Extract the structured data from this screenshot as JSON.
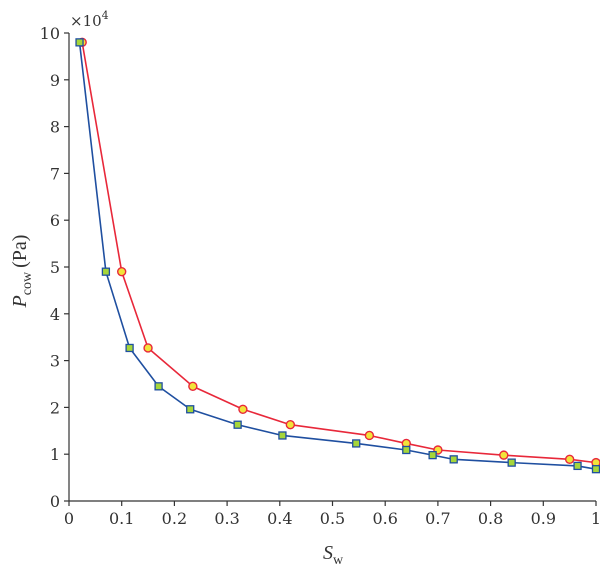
{
  "chart_data": {
    "type": "line",
    "title": "",
    "xlabel": {
      "main": "S",
      "sub": "w"
    },
    "ylabel": {
      "main": "P",
      "sub": "cow",
      "unit": "(Pa)"
    },
    "y_multiplier": {
      "base": "×10",
      "exponent": "4"
    },
    "xlim": [
      0,
      1
    ],
    "ylim": [
      0,
      10
    ],
    "x_ticks": [
      "0",
      "0.1",
      "0.2",
      "0.3",
      "0.4",
      "0.5",
      "0.6",
      "0.7",
      "0.8",
      "0.9",
      "1"
    ],
    "y_ticks": [
      "0",
      "1",
      "2",
      "3",
      "4",
      "5",
      "6",
      "7",
      "8",
      "9",
      "10"
    ],
    "grid": false,
    "series": [
      {
        "line_color": "#e8283a",
        "marker": "circle",
        "marker_fill": "#f2e33a",
        "marker_edge": "#e8283a",
        "points": [
          [
            0.025,
            9.8
          ],
          [
            0.1,
            4.9
          ],
          [
            0.15,
            3.27
          ],
          [
            0.235,
            2.45
          ],
          [
            0.33,
            1.96
          ],
          [
            0.42,
            1.63
          ],
          [
            0.57,
            1.4
          ],
          [
            0.64,
            1.23
          ],
          [
            0.7,
            1.09
          ],
          [
            0.825,
            0.98
          ],
          [
            0.95,
            0.89
          ],
          [
            1.0,
            0.82
          ]
        ]
      },
      {
        "line_color": "#1f4fa0",
        "marker": "square",
        "marker_fill": "#a6d63a",
        "marker_edge": "#1f4fa0",
        "points": [
          [
            0.02,
            9.8
          ],
          [
            0.07,
            4.9
          ],
          [
            0.115,
            3.27
          ],
          [
            0.17,
            2.45
          ],
          [
            0.23,
            1.96
          ],
          [
            0.32,
            1.63
          ],
          [
            0.405,
            1.4
          ],
          [
            0.545,
            1.23
          ],
          [
            0.64,
            1.09
          ],
          [
            0.69,
            0.98
          ],
          [
            0.73,
            0.89
          ],
          [
            0.84,
            0.82
          ],
          [
            0.965,
            0.75
          ],
          [
            1.0,
            0.68
          ]
        ]
      }
    ]
  }
}
